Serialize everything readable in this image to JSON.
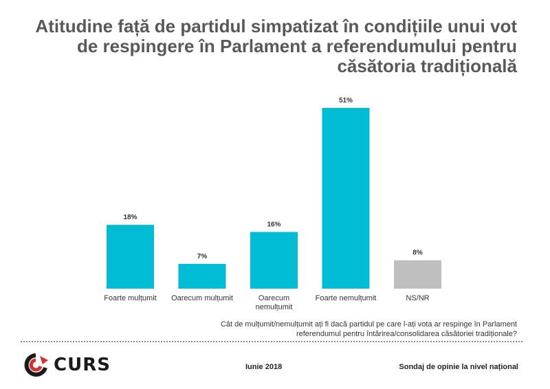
{
  "title_lines": [
    "Atitudine față de partidul simpatizat în condițiile unui vot",
    "de respingere în Parlament a referendumului pentru",
    "căsătoria tradițională"
  ],
  "chart_data": {
    "type": "bar",
    "categories": [
      [
        "Foarte mulțumit"
      ],
      [
        "Oarecum mulțumit"
      ],
      [
        "Oarecum",
        "nemulțumit"
      ],
      [
        "Foarte nemulțumit"
      ],
      [
        "NS/NR"
      ]
    ],
    "values": [
      18,
      7,
      16,
      51,
      8
    ],
    "data_labels": [
      "18%",
      "7%",
      "16%",
      "51%",
      "8%"
    ],
    "colors": [
      "#00bcd4",
      "#00bcd4",
      "#00bcd4",
      "#00bcd4",
      "#bfbfbf"
    ],
    "ylim": [
      0,
      51
    ],
    "grid": false,
    "legend": "none"
  },
  "question_lines": [
    "Cât de mulțumit/nemulțumit ați fi dacă partidul pe care l-ați vota ar respinge în Parlament",
    "referendumul pentru întărirea/consolidarea căsătoriei tradiționale?"
  ],
  "footer": {
    "logo_text": "CURS",
    "date": "Iunie 2018",
    "survey": "Sondaj de opinie la nivel național"
  }
}
